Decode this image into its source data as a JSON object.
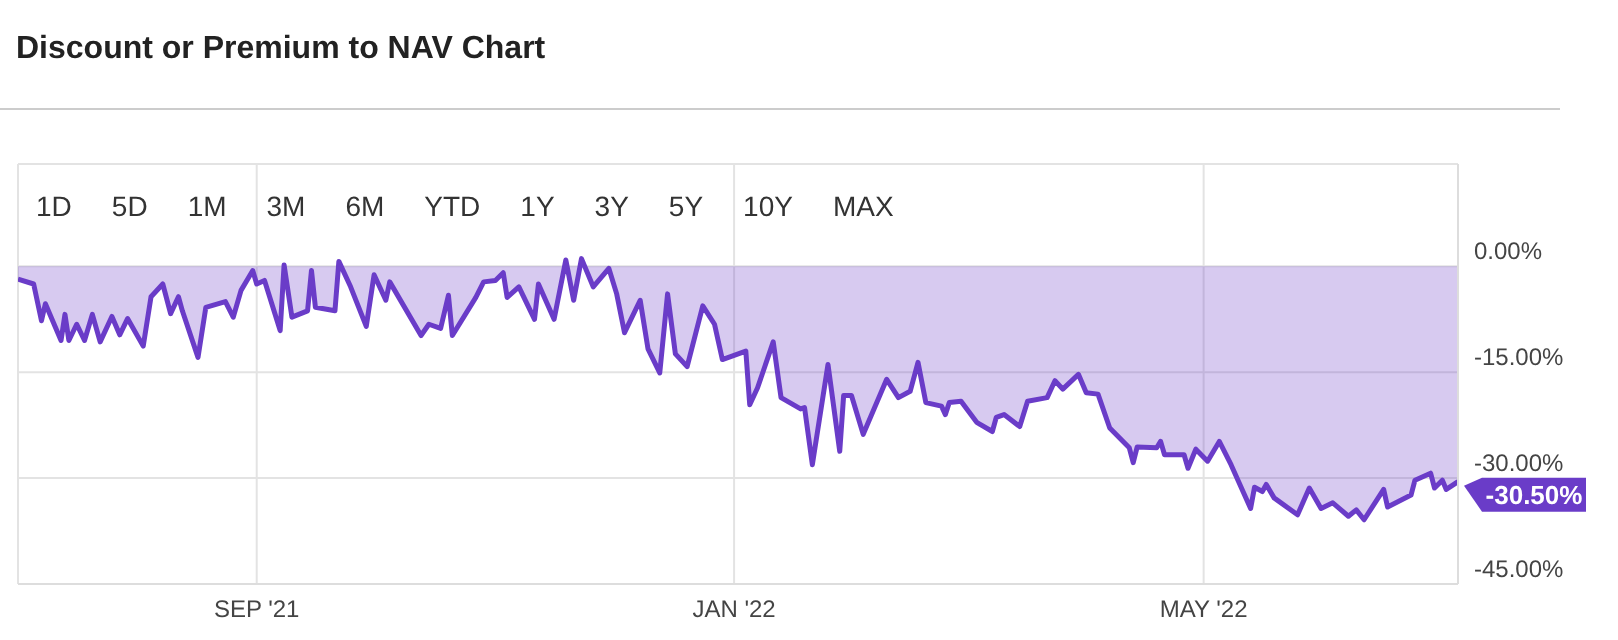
{
  "chart_data": {
    "type": "area",
    "title": "Discount or Premium to NAV Chart",
    "annotations": [
      "1D",
      "5D",
      "1M",
      "3M",
      "6M",
      "YTD",
      "1Y",
      "3Y",
      "5Y",
      "10Y",
      "MAX",
      {
        "text": "-30.50%",
        "x": "2022-07-05",
        "y": -30.5
      }
    ],
    "x": [
      "2021-07-02",
      "2021-07-06",
      "2021-07-08",
      "2021-07-09",
      "2021-07-13",
      "2021-07-14",
      "2021-07-15",
      "2021-07-17",
      "2021-07-19",
      "2021-07-21",
      "2021-07-23",
      "2021-07-26",
      "2021-07-28",
      "2021-07-30",
      "2021-08-03",
      "2021-08-05",
      "2021-08-08",
      "2021-08-10",
      "2021-08-12",
      "2021-08-13",
      "2021-08-17",
      "2021-08-19",
      "2021-08-24",
      "2021-08-26",
      "2021-08-28",
      "2021-08-31",
      "2021-09-01",
      "2021-09-03",
      "2021-09-07",
      "2021-09-08",
      "2021-09-10",
      "2021-09-14",
      "2021-09-15",
      "2021-09-16",
      "2021-09-21",
      "2021-09-22",
      "2021-09-25",
      "2021-09-29",
      "2021-10-01",
      "2021-10-04",
      "2021-10-05",
      "2021-10-13",
      "2021-10-15",
      "2021-10-18",
      "2021-10-20",
      "2021-10-21",
      "2021-10-27",
      "2021-10-29",
      "2021-11-01",
      "2021-11-03",
      "2021-11-04",
      "2021-11-07",
      "2021-11-11",
      "2021-11-12",
      "2021-11-16",
      "2021-11-19",
      "2021-11-21",
      "2021-11-23",
      "2021-11-26",
      "2021-11-30",
      "2021-12-02",
      "2021-12-04",
      "2021-12-08",
      "2021-12-10",
      "2021-12-13",
      "2021-12-15",
      "2021-12-17",
      "2021-12-20",
      "2021-12-24",
      "2021-12-27",
      "2021-12-29",
      "2022-01-04",
      "2022-01-05",
      "2022-01-07",
      "2022-01-11",
      "2022-01-13",
      "2022-01-18",
      "2022-01-19",
      "2022-01-21",
      "2022-01-25",
      "2022-01-28",
      "2022-01-29",
      "2022-01-31",
      "2022-02-03",
      "2022-02-09",
      "2022-02-12",
      "2022-02-15",
      "2022-02-17",
      "2022-02-19",
      "2022-02-23",
      "2022-02-24",
      "2022-02-25",
      "2022-02-28",
      "2022-03-04",
      "2022-03-08",
      "2022-03-09",
      "2022-03-11",
      "2022-03-15",
      "2022-03-17",
      "2022-03-22",
      "2022-03-24",
      "2022-03-26",
      "2022-03-30",
      "2022-04-01",
      "2022-04-04",
      "2022-04-07",
      "2022-04-12",
      "2022-04-13",
      "2022-04-14",
      "2022-04-19",
      "2022-04-20",
      "2022-04-21",
      "2022-04-26",
      "2022-04-27",
      "2022-04-29",
      "2022-05-02",
      "2022-05-05",
      "2022-05-08",
      "2022-05-13",
      "2022-05-14",
      "2022-05-16",
      "2022-05-17",
      "2022-05-19",
      "2022-05-25",
      "2022-05-28",
      "2022-05-31",
      "2022-06-03",
      "2022-06-07",
      "2022-06-09",
      "2022-06-11",
      "2022-06-16",
      "2022-06-17",
      "2022-06-23",
      "2022-06-24",
      "2022-06-28",
      "2022-06-29",
      "2022-07-01",
      "2022-07-02",
      "2022-07-05"
    ],
    "values": [
      -1.8,
      -2.5,
      -7.7,
      -5.3,
      -10.5,
      -6.8,
      -10.5,
      -8.2,
      -10.5,
      -6.8,
      -10.7,
      -7.1,
      -9.7,
      -7.4,
      -11.3,
      -4.3,
      -2.5,
      -6.7,
      -4.3,
      -6.3,
      -12.9,
      -5.8,
      -5.0,
      -7.2,
      -3.4,
      -0.6,
      -2.5,
      -2.0,
      -9.1,
      0.2,
      -7.2,
      -6.3,
      -0.6,
      -5.8,
      -6.3,
      0.7,
      -2.9,
      -8.5,
      -1.2,
      -4.8,
      -2.2,
      -9.8,
      -8.2,
      -8.8,
      -4.1,
      -9.8,
      -4.4,
      -2.2,
      -2.0,
      -0.9,
      -4.4,
      -2.9,
      -7.5,
      -2.5,
      -7.5,
      0.9,
      -4.8,
      1.1,
      -2.9,
      -0.3,
      -3.9,
      -9.4,
      -4.8,
      -11.7,
      -15.1,
      -3.9,
      -12.4,
      -14.2,
      -5.6,
      -8.2,
      -13.2,
      -12.0,
      -19.6,
      -17.2,
      -10.7,
      -18.6,
      -20.2,
      -20.0,
      -28.1,
      -13.9,
      -26.2,
      -18.3,
      -18.3,
      -23.8,
      -16.0,
      -18.6,
      -17.7,
      -13.6,
      -19.3,
      -19.8,
      -21.0,
      -19.3,
      -19.1,
      -22.1,
      -23.4,
      -21.4,
      -21.0,
      -22.7,
      -19.1,
      -18.6,
      -16.2,
      -17.4,
      -15.3,
      -17.9,
      -18.1,
      -22.9,
      -25.7,
      -27.8,
      -25.6,
      -25.7,
      -24.8,
      -26.7,
      -26.7,
      -28.6,
      -25.9,
      -27.6,
      -24.8,
      -28.1,
      -34.3,
      -31.3,
      -31.9,
      -30.9,
      -32.8,
      -35.2,
      -31.4,
      -34.3,
      -33.5,
      -35.4,
      -34.5,
      -35.9,
      -31.6,
      -34.1,
      -32.4,
      -30.3,
      -29.3,
      -31.4,
      -30.3,
      -31.6,
      -30.5
    ],
    "color": "#6a3cc8",
    "xlim": [
      "2021-07-02",
      "2022-07-05"
    ],
    "xticks": [
      {
        "value": "2021-09-01",
        "label": "SEP '21"
      },
      {
        "value": "2022-01-01",
        "label": "JAN '22"
      },
      {
        "value": "2022-05-01",
        "label": "MAY '22"
      }
    ],
    "ylim": [
      -45,
      14.5
    ],
    "yticks": [
      {
        "value": 0,
        "label": "0.00%"
      },
      {
        "value": -15,
        "label": "-15.00%"
      },
      {
        "value": -30,
        "label": "-30.00%"
      },
      {
        "value": -45,
        "label": "-45.00%"
      }
    ],
    "grid": true
  }
}
